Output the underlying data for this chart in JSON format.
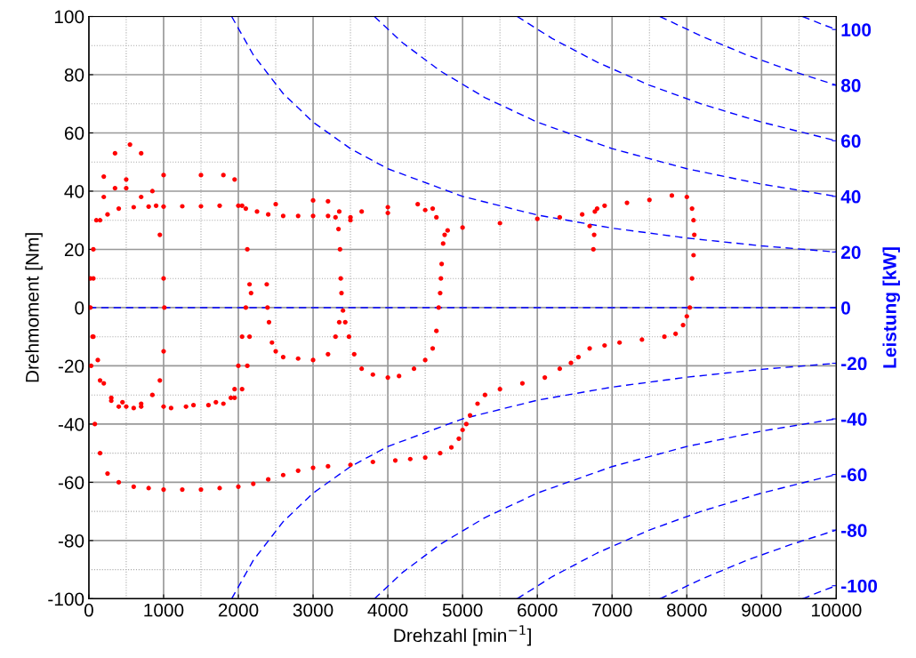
{
  "chart_data": {
    "type": "scatter",
    "xlabel": "Drehzahl [min$^{−1}$]",
    "ylabel": "Drehmoment [Nm]",
    "y2label": "Leistung [kW]",
    "xlim": [
      0,
      10000
    ],
    "xticks": [
      0,
      1000,
      2000,
      3000,
      4000,
      5000,
      6000,
      7000,
      8000,
      9000,
      10000
    ],
    "ylim": [
      -100,
      100
    ],
    "yticks": [
      -100,
      -80,
      -60,
      -40,
      -20,
      0,
      20,
      40,
      60,
      80,
      100
    ],
    "y2lim": [
      -104.7,
      104.7
    ],
    "y2ticks": [
      -100,
      -80,
      -60,
      -40,
      -20,
      0,
      20,
      40,
      60,
      80,
      100
    ],
    "grid": true,
    "marker": "circle",
    "series": [
      {
        "color": "#ff0000",
        "x": [
          0,
          30,
          80,
          150,
          250,
          400,
          600,
          800,
          1000,
          1250
        ],
        "values": [
          0,
          -20,
          -40,
          -50,
          -57,
          -60,
          -61.5,
          -62,
          -62.5,
          -62.5
        ]
      },
      {
        "color": "#ff0000",
        "x": [
          1500,
          1750,
          2000,
          2200,
          2400,
          2600,
          2800,
          3000,
          3200,
          3500
        ],
        "values": [
          -62.5,
          -62,
          -61.5,
          -60.5,
          -59,
          -57.5,
          -56,
          -55,
          -54.5,
          -54
        ]
      },
      {
        "color": "#ff0000",
        "x": [
          3800,
          4100,
          4300,
          4500,
          4700,
          4850,
          4950,
          5000,
          5050,
          5100
        ],
        "values": [
          -53,
          -52.5,
          -52,
          -51.5,
          -50,
          -48,
          -45,
          -42,
          -40,
          -37
        ]
      },
      {
        "color": "#ff0000",
        "x": [
          5200,
          5300,
          5500,
          5800,
          6100,
          6300,
          6450,
          6550,
          6700,
          6900
        ],
        "values": [
          -33,
          -30,
          -28,
          -26,
          -24,
          -21,
          -19,
          -17,
          -14,
          -13
        ]
      },
      {
        "color": "#ff0000",
        "x": [
          7100,
          7400,
          7700,
          7850,
          7950,
          8000,
          8040,
          8070,
          8090,
          8100
        ],
        "values": [
          -12,
          -11,
          -10,
          -9,
          -6,
          -3,
          0,
          10,
          18,
          25
        ]
      },
      {
        "color": "#ff0000",
        "x": [
          8090,
          8070,
          8000,
          7800,
          7500,
          7200,
          6900,
          6800,
          6770,
          6760
        ],
        "values": [
          30,
          34,
          38,
          38.5,
          37,
          36,
          35,
          34,
          33,
          25
        ]
      },
      {
        "color": "#ff0000",
        "x": [
          6750,
          6700,
          6600,
          6300,
          6000,
          5500,
          5000,
          4800,
          4760,
          4740
        ],
        "values": [
          20,
          28,
          32,
          31,
          30.5,
          29,
          27.5,
          26.5,
          25,
          22
        ]
      },
      {
        "color": "#ff0000",
        "x": [
          4720,
          4710,
          4700,
          4680,
          4650,
          4600,
          4500,
          4350,
          4150,
          4000
        ],
        "values": [
          15,
          10,
          5,
          0,
          -8,
          -14,
          -18,
          -21,
          -23.5,
          -24
        ]
      },
      {
        "color": "#ff0000",
        "x": [
          3800,
          3650,
          3550,
          3480,
          3430,
          3400,
          3380,
          3370,
          3360,
          3340
        ],
        "values": [
          -23,
          -21,
          -16,
          -10,
          -5,
          -1,
          5,
          10,
          20,
          27
        ]
      },
      {
        "color": "#ff0000",
        "x": [
          3300,
          3200,
          3000,
          2800,
          2600,
          2400,
          2250,
          2100,
          2000,
          1750
        ],
        "values": [
          31,
          31.5,
          31.5,
          31.5,
          31.5,
          32,
          33,
          34,
          35,
          35
        ]
      },
      {
        "color": "#ff0000",
        "x": [
          1500,
          1250,
          1000,
          800,
          600,
          400,
          250,
          150,
          60,
          20
        ],
        "values": [
          34.8,
          34.8,
          34.7,
          34.7,
          34.5,
          34,
          32,
          30,
          20,
          10
        ]
      },
      {
        "color": "#ff0000",
        "x": [
          20,
          50,
          120,
          200,
          300,
          400,
          500,
          700,
          1000,
          1300
        ],
        "values": [
          0,
          -10,
          -18,
          -26,
          -31,
          -34,
          -34,
          -34,
          -34,
          -34
        ]
      },
      {
        "color": "#ff0000",
        "x": [
          1600,
          1800,
          1900,
          1950,
          2000,
          2050,
          2100,
          2150,
          2170,
          2150
        ],
        "values": [
          -33.5,
          -33,
          -31,
          -28,
          -20,
          -10,
          0,
          8,
          5,
          -10
        ]
      },
      {
        "color": "#ff0000",
        "x": [
          2120,
          2050,
          1950,
          1700,
          1400,
          1100,
          600,
          300,
          150,
          60
        ],
        "values": [
          -20,
          -28,
          -31,
          -32.5,
          -33.5,
          -34.5,
          -34.5,
          -32,
          -25,
          -10
        ]
      },
      {
        "color": "#ff0000",
        "x": [
          60,
          100,
          200,
          350,
          550,
          700,
          850,
          950,
          1000,
          1010
        ],
        "values": [
          10,
          30,
          45,
          53,
          56,
          53,
          40,
          25,
          10,
          0
        ]
      },
      {
        "color": "#ff0000",
        "x": [
          1000,
          950,
          850,
          700,
          450,
          200,
          350,
          500,
          700,
          900
        ],
        "values": [
          -15,
          -25,
          -30,
          -33,
          -32.5,
          38,
          41,
          41,
          38,
          35
        ]
      },
      {
        "color": "#ff0000",
        "x": [
          2500,
          3000,
          3200,
          3350,
          3500,
          3650,
          4000,
          4400,
          4600,
          4650
        ],
        "values": [
          35.5,
          36.8,
          36.5,
          33,
          30,
          33,
          34.5,
          35.5,
          34,
          31
        ]
      },
      {
        "color": "#ff0000",
        "x": [
          3500,
          4000,
          4500,
          2380,
          2390,
          2410,
          2450,
          2500,
          2600,
          2800
        ],
        "values": [
          31,
          32.5,
          33.5,
          8,
          0,
          -5,
          -12,
          -15,
          -17,
          -17.5
        ]
      },
      {
        "color": "#ff0000",
        "x": [
          3000,
          3200,
          3300,
          3350,
          1000,
          1500,
          500,
          1800,
          1950,
          2050,
          2120
        ],
        "values": [
          -18,
          -16,
          -10,
          -5,
          45.5,
          45.5,
          44,
          45.5,
          44,
          35,
          20
        ]
      },
      {
        "type": "line",
        "color": "#0000ff",
        "line_style": "dashed",
        "marker": "none",
        "x": [
          0,
          10000
        ],
        "values": [
          0,
          0
        ]
      },
      {
        "type": "line",
        "color": "#0000ff",
        "line_style": "dashed",
        "marker": "none",
        "x": [
          1910,
          2200,
          2600,
          3000,
          3500,
          4000,
          5000,
          6000,
          7000,
          8000,
          9000,
          10000
        ],
        "values": [
          100,
          86.8,
          73.5,
          63.7,
          54.6,
          47.7,
          38.2,
          31.8,
          27.3,
          23.9,
          21.2,
          19.1
        ]
      },
      {
        "type": "line",
        "color": "#0000ff",
        "line_style": "dashed",
        "marker": "none",
        "x": [
          3820,
          4200,
          4700,
          5300,
          6000,
          7000,
          8000,
          9000,
          10000
        ],
        "values": [
          100,
          90.9,
          81.3,
          72.1,
          63.7,
          54.6,
          47.7,
          42.4,
          38.2
        ]
      },
      {
        "type": "line",
        "color": "#0000ff",
        "line_style": "dashed",
        "marker": "none",
        "x": [
          5730,
          6200,
          6800,
          7500,
          8200,
          9000,
          10000
        ],
        "values": [
          100,
          92.4,
          84.3,
          76.4,
          69.9,
          63.7,
          57.3
        ]
      },
      {
        "type": "line",
        "color": "#0000ff",
        "line_style": "dashed",
        "marker": "none",
        "x": [
          7640,
          8200,
          8800,
          9400,
          10000
        ],
        "values": [
          100,
          93.2,
          86.8,
          81.3,
          76.4
        ]
      },
      {
        "type": "line",
        "color": "#0000ff",
        "line_style": "dashed",
        "marker": "none",
        "x": [
          9549,
          9800,
          10000
        ],
        "values": [
          100,
          97.4,
          95.5
        ]
      },
      {
        "type": "line",
        "color": "#0000ff",
        "line_style": "dashed",
        "marker": "none",
        "x": [
          1910,
          2200,
          2600,
          3000,
          3500,
          4000,
          5000,
          6000,
          7000,
          8000,
          9000,
          10000
        ],
        "values": [
          -100,
          -86.8,
          -73.5,
          -63.7,
          -54.6,
          -47.7,
          -38.2,
          -31.8,
          -27.3,
          -23.9,
          -21.2,
          -19.1
        ]
      },
      {
        "type": "line",
        "color": "#0000ff",
        "line_style": "dashed",
        "marker": "none",
        "x": [
          3820,
          4200,
          4700,
          5300,
          6000,
          7000,
          8000,
          9000,
          10000
        ],
        "values": [
          -100,
          -90.9,
          -81.3,
          -72.1,
          -63.7,
          -54.6,
          -47.7,
          -42.4,
          -38.2
        ]
      },
      {
        "type": "line",
        "color": "#0000ff",
        "line_style": "dashed",
        "marker": "none",
        "x": [
          5730,
          6200,
          6800,
          7500,
          8200,
          9000,
          10000
        ],
        "values": [
          -100,
          -92.4,
          -84.3,
          -76.4,
          -69.9,
          -63.7,
          -57.3
        ]
      },
      {
        "type": "line",
        "color": "#0000ff",
        "line_style": "dashed",
        "marker": "none",
        "x": [
          7640,
          8200,
          8800,
          9400,
          10000
        ],
        "values": [
          -100,
          -93.2,
          -86.8,
          -81.3,
          -76.4
        ]
      },
      {
        "type": "line",
        "color": "#0000ff",
        "line_style": "dashed",
        "marker": "none",
        "x": [
          9549,
          9800,
          10000
        ],
        "values": [
          -100,
          -97.4,
          -95.5
        ]
      }
    ]
  }
}
